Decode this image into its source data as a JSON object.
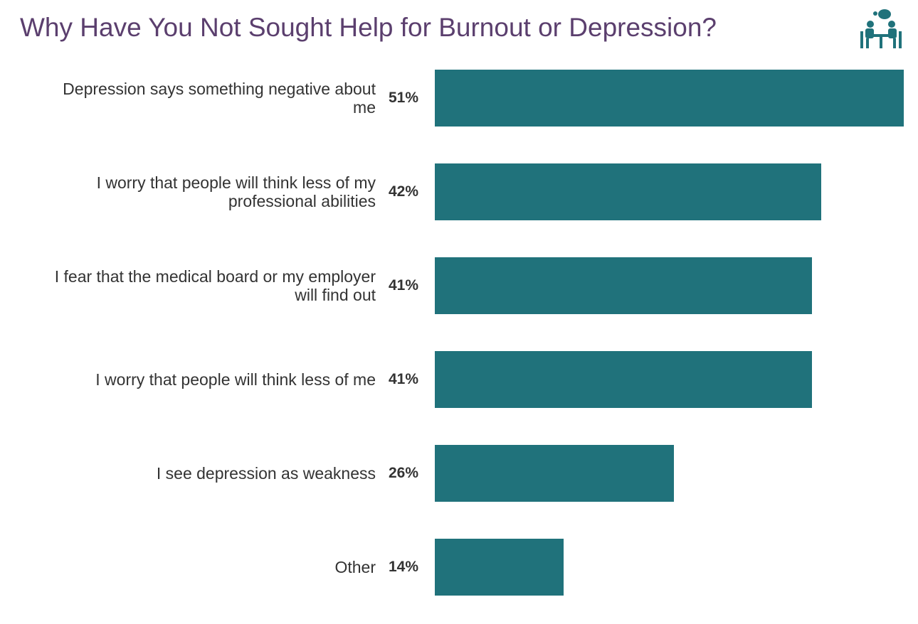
{
  "chart_data": {
    "type": "bar",
    "orientation": "horizontal",
    "title": "Why Have You Not Sought Help for Burnout or Depression?",
    "categories": [
      "Depression says something negative about me",
      "I worry that people will think less of my professional abilities",
      "I fear that the medical board or my employer will find out",
      "I worry that people will think less of me",
      "I see depression as weakness",
      "Other"
    ],
    "values": [
      51,
      42,
      41,
      41,
      26,
      14
    ],
    "value_labels": [
      "51%",
      "42%",
      "41%",
      "41%",
      "26%",
      "14%"
    ],
    "color": "#20727b",
    "xlim": [
      0,
      51
    ]
  }
}
